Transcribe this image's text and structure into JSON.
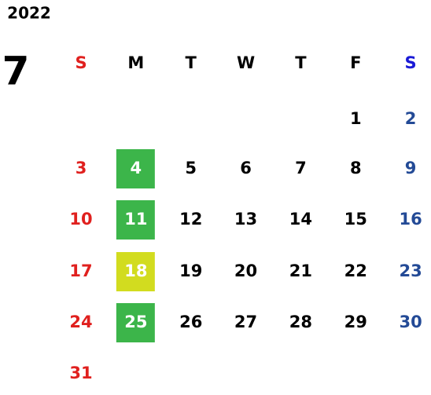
{
  "calendar": {
    "year": "2022",
    "month": "7",
    "weekdays": [
      "S",
      "M",
      "T",
      "W",
      "T",
      "F",
      "S"
    ],
    "header_colors": [
      "#e0201e",
      "#000000",
      "#000000",
      "#000000",
      "#000000",
      "#000000",
      "#1a1ad6"
    ],
    "day_colors": [
      "#e0201e",
      "#000000",
      "#000000",
      "#000000",
      "#000000",
      "#000000",
      "#234a96"
    ],
    "highlight_text_color": "#ffffff",
    "weeks": [
      [
        null,
        null,
        null,
        null,
        null,
        1,
        2
      ],
      [
        3,
        {
          "day": 4,
          "highlight": "#3cb54a"
        },
        5,
        6,
        7,
        8,
        9
      ],
      [
        10,
        {
          "day": 11,
          "highlight": "#3cb54a"
        },
        12,
        13,
        14,
        15,
        16
      ],
      [
        17,
        {
          "day": 18,
          "highlight": "#d2dc1f"
        },
        19,
        20,
        21,
        22,
        23
      ],
      [
        24,
        {
          "day": 25,
          "highlight": "#3cb54a"
        },
        26,
        27,
        28,
        29,
        30
      ],
      [
        31,
        null,
        null,
        null,
        null,
        null,
        null
      ]
    ]
  }
}
